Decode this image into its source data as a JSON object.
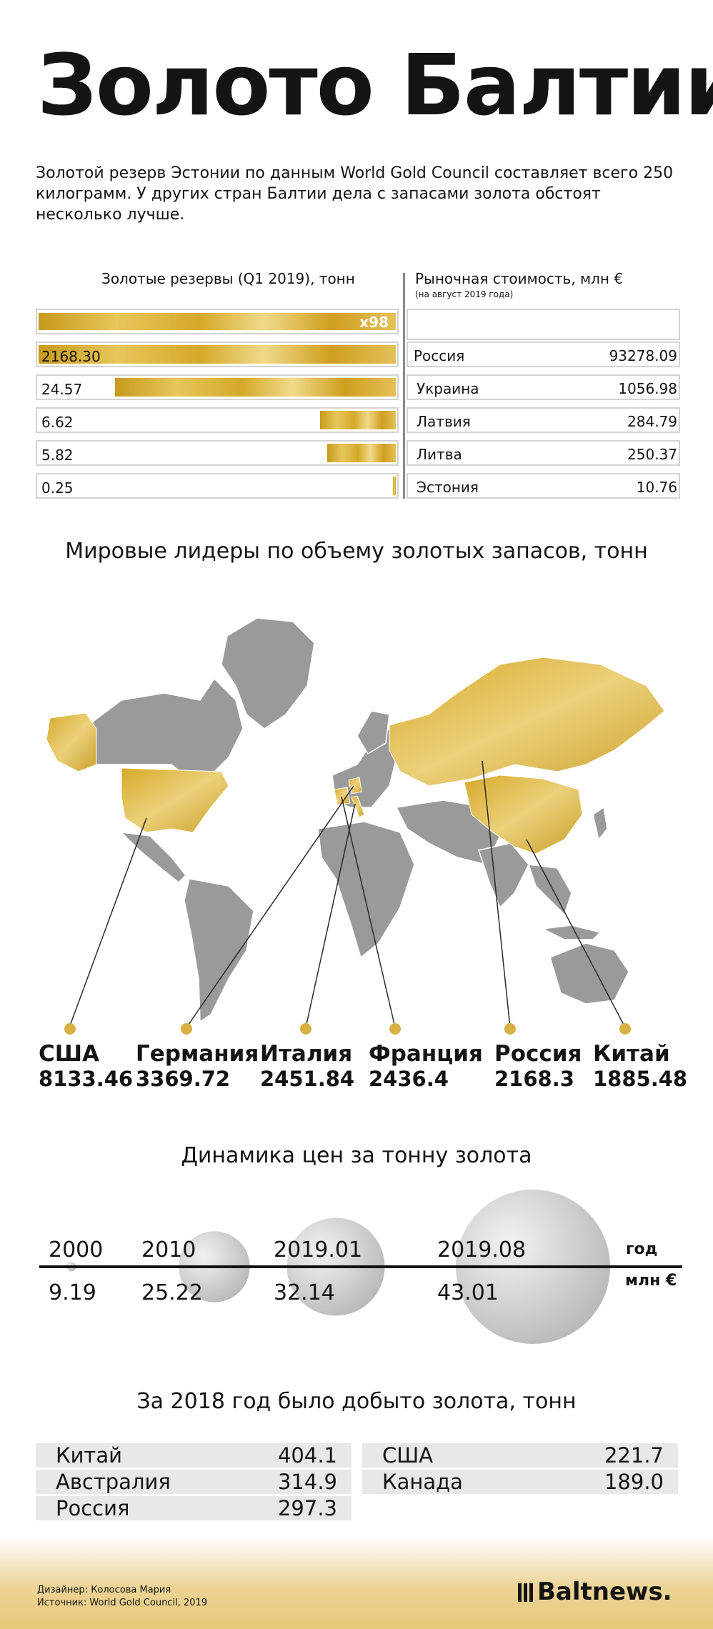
{
  "header": {
    "title": "Золото Балтии",
    "intro": "Золотой резерв Эстонии по данным World Gold Council составляет всего 250 килограмм. У других стран Балтии дела с запасами золота обстоят несколько лучше."
  },
  "reserves": {
    "left_header": "Золотые резервы (Q1 2019), тонн",
    "right_header": "Рыночная стоимость, млн €",
    "right_subheader": "(на август 2019 года)",
    "multiplier_label": "x98",
    "rows": [
      {
        "tons": "2168.30",
        "country": "Россия",
        "value": "93278.09",
        "fill": 1.0
      },
      {
        "tons": "24.57",
        "country": "Украина",
        "value": "1056.98",
        "fill": 0.78
      },
      {
        "tons": "6.62",
        "country": "Латвия",
        "value": "284.79",
        "fill": 0.21
      },
      {
        "tons": "5.82",
        "country": "Литва",
        "value": "250.37",
        "fill": 0.19
      },
      {
        "tons": "0.25",
        "country": "Эстония",
        "value": "10.76",
        "fill": 0.01
      }
    ]
  },
  "leaders": {
    "title": "Мировые лидеры по объему золотых запасов, тонн",
    "items": [
      {
        "name": "США",
        "value": "8133.46"
      },
      {
        "name": "Германия",
        "value": "3369.72"
      },
      {
        "name": "Италия",
        "value": "2451.84"
      },
      {
        "name": "Франция",
        "value": "2436.4"
      },
      {
        "name": "Россия",
        "value": "2168.3"
      },
      {
        "name": "Китай",
        "value": "1885.48"
      }
    ]
  },
  "prices": {
    "title": "Динамика цен за тонну золота",
    "year_label": "год",
    "unit_label": "млн €",
    "points": [
      {
        "year": "2000",
        "price": 9.19
      },
      {
        "year": "2010",
        "price": 25.22
      },
      {
        "year": "2019.01",
        "price": 32.14
      },
      {
        "year": "2019.08",
        "price": 43.01
      }
    ]
  },
  "mining": {
    "title": "За 2018 год было добыто золота, тонн",
    "left": [
      {
        "country": "Китай",
        "value": "404.1"
      },
      {
        "country": "Австралия",
        "value": "314.9"
      },
      {
        "country": "Россия",
        "value": "297.3"
      }
    ],
    "right": [
      {
        "country": "США",
        "value": "221.7"
      },
      {
        "country": "Канада",
        "value": "189.0"
      }
    ]
  },
  "footer": {
    "designer": "Дизайнер: Колосова Мария",
    "source": "Источник: World Gold Council, 2019",
    "logo": "Baltnews."
  },
  "chart_data": [
    {
      "type": "bar",
      "title": "Золотые резервы (Q1 2019), тонн",
      "categories": [
        "Россия",
        "Украина",
        "Латвия",
        "Литва",
        "Эстония"
      ],
      "values": [
        2168.3,
        24.57,
        6.62,
        5.82,
        0.25
      ],
      "annotations": [
        "x98"
      ]
    },
    {
      "type": "table",
      "title": "Рыночная стоимость, млн €",
      "categories": [
        "Россия",
        "Украина",
        "Латвия",
        "Литва",
        "Эстония"
      ],
      "values": [
        93278.09,
        1056.98,
        284.79,
        250.37,
        10.76
      ]
    },
    {
      "type": "table",
      "title": "Мировые лидеры по объему золотых запасов, тонн",
      "categories": [
        "США",
        "Германия",
        "Италия",
        "Франция",
        "Россия",
        "Китай"
      ],
      "values": [
        8133.46,
        3369.72,
        2451.84,
        2436.4,
        2168.3,
        1885.48
      ]
    },
    {
      "type": "scatter",
      "title": "Динамика цен за тонну золота",
      "categories": [
        "2000",
        "2010",
        "2019.01",
        "2019.08"
      ],
      "values": [
        9.19,
        25.22,
        32.14,
        43.01
      ],
      "xlabel": "год",
      "ylabel": "млн €"
    },
    {
      "type": "table",
      "title": "За 2018 год было добыто золота, тонн",
      "categories": [
        "Китай",
        "Австралия",
        "Россия",
        "США",
        "Канада"
      ],
      "values": [
        404.1,
        314.9,
        297.3,
        221.7,
        189.0
      ]
    }
  ]
}
